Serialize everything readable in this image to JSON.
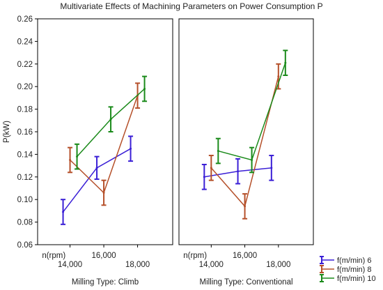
{
  "chart_data": [
    {
      "type": "line",
      "panel": "Milling Type: Climb",
      "title": "Multivariate Effects of Machining Parameters on Power Consumption P",
      "ylabel": "P(kW)",
      "xlabel_inner": "n(rpm)",
      "categories": [
        "14,000",
        "16,000",
        "18,000"
      ],
      "ylim": [
        0.06,
        0.26
      ],
      "yticks": [
        "0.06",
        "0.08",
        "0.10",
        "0.12",
        "0.14",
        "0.16",
        "0.18",
        "0.20",
        "0.22",
        "0.24",
        "0.26"
      ],
      "error_bars": true,
      "series": [
        {
          "name": "f(m/min) 6",
          "color": "#3a1fd6",
          "values": [
            0.089,
            0.128,
            0.145
          ],
          "err": [
            0.011,
            0.01,
            0.011
          ]
        },
        {
          "name": "f(m/min) 8",
          "color": "#b5502a",
          "values": [
            0.135,
            0.106,
            0.192
          ],
          "err": [
            0.011,
            0.011,
            0.011
          ]
        },
        {
          "name": "f(m/min) 10",
          "color": "#1a8a1a",
          "values": [
            0.138,
            0.171,
            0.198
          ],
          "err": [
            0.011,
            0.011,
            0.011
          ]
        }
      ]
    },
    {
      "type": "line",
      "panel": "Milling Type: Conventional",
      "categories": [
        "14,000",
        "16,000",
        "18,000"
      ],
      "ylim": [
        0.06,
        0.26
      ],
      "error_bars": true,
      "series": [
        {
          "name": "f(m/min) 6",
          "color": "#3a1fd6",
          "values": [
            0.12,
            0.125,
            0.128
          ],
          "err": [
            0.011,
            0.011,
            0.011
          ]
        },
        {
          "name": "f(m/min) 8",
          "color": "#b5502a",
          "values": [
            0.128,
            0.094,
            0.209
          ],
          "err": [
            0.011,
            0.011,
            0.011
          ]
        },
        {
          "name": "f(m/min) 10",
          "color": "#1a8a1a",
          "values": [
            0.143,
            0.135,
            0.221
          ],
          "err": [
            0.011,
            0.011,
            0.011
          ]
        }
      ]
    }
  ],
  "legend": {
    "position": "bottom-right",
    "items": [
      "f(m/min) 6",
      "f(m/min) 8",
      "f(m/min) 10"
    ]
  }
}
